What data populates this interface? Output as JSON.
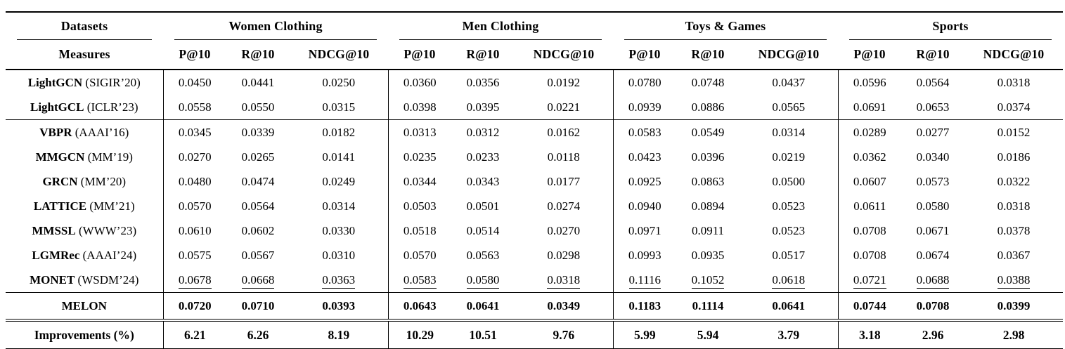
{
  "table": {
    "corner": {
      "row1": "Datasets",
      "row2": "Measures"
    },
    "groups": [
      {
        "label": "Women Clothing"
      },
      {
        "label": "Men Clothing"
      },
      {
        "label": "Toys & Games"
      },
      {
        "label": "Sports"
      }
    ],
    "measures": [
      "P@10",
      "R@10",
      "NDCG@10"
    ],
    "rows": [
      {
        "method": "LightGCN",
        "venue": "(SIGIR’20)",
        "style": "normal",
        "rule_below": "none",
        "values": [
          "0.0450",
          "0.0441",
          "0.0250",
          "0.0360",
          "0.0356",
          "0.0192",
          "0.0780",
          "0.0748",
          "0.0437",
          "0.0596",
          "0.0564",
          "0.0318"
        ]
      },
      {
        "method": "LightGCL",
        "venue": "(ICLR’23)",
        "style": "normal",
        "rule_below": "single",
        "values": [
          "0.0558",
          "0.0550",
          "0.0315",
          "0.0398",
          "0.0395",
          "0.0221",
          "0.0939",
          "0.0886",
          "0.0565",
          "0.0691",
          "0.0653",
          "0.0374"
        ]
      },
      {
        "method": "VBPR",
        "venue": "(AAAI’16)",
        "style": "normal",
        "rule_below": "none",
        "values": [
          "0.0345",
          "0.0339",
          "0.0182",
          "0.0313",
          "0.0312",
          "0.0162",
          "0.0583",
          "0.0549",
          "0.0314",
          "0.0289",
          "0.0277",
          "0.0152"
        ]
      },
      {
        "method": "MMGCN",
        "venue": "(MM’19)",
        "style": "normal",
        "rule_below": "none",
        "values": [
          "0.0270",
          "0.0265",
          "0.0141",
          "0.0235",
          "0.0233",
          "0.0118",
          "0.0423",
          "0.0396",
          "0.0219",
          "0.0362",
          "0.0340",
          "0.0186"
        ]
      },
      {
        "method": "GRCN",
        "venue": "(MM’20)",
        "style": "normal",
        "rule_below": "none",
        "values": [
          "0.0480",
          "0.0474",
          "0.0249",
          "0.0344",
          "0.0343",
          "0.0177",
          "0.0925",
          "0.0863",
          "0.0500",
          "0.0607",
          "0.0573",
          "0.0322"
        ]
      },
      {
        "method": "LATTICE",
        "venue": "(MM’21)",
        "style": "normal",
        "rule_below": "none",
        "values": [
          "0.0570",
          "0.0564",
          "0.0314",
          "0.0503",
          "0.0501",
          "0.0274",
          "0.0940",
          "0.0894",
          "0.0523",
          "0.0611",
          "0.0580",
          "0.0318"
        ]
      },
      {
        "method": "MMSSL",
        "venue": "(WWW’23)",
        "style": "normal",
        "rule_below": "none",
        "values": [
          "0.0610",
          "0.0602",
          "0.0330",
          "0.0518",
          "0.0514",
          "0.0270",
          "0.0971",
          "0.0911",
          "0.0523",
          "0.0708",
          "0.0671",
          "0.0378"
        ]
      },
      {
        "method": "LGMRec",
        "venue": "(AAAI’24)",
        "style": "normal",
        "rule_below": "none",
        "values": [
          "0.0575",
          "0.0567",
          "0.0310",
          "0.0570",
          "0.0563",
          "0.0298",
          "0.0993",
          "0.0935",
          "0.0517",
          "0.0708",
          "0.0674",
          "0.0367"
        ]
      },
      {
        "method": "MONET",
        "venue": "(WSDM’24)",
        "style": "underline",
        "rule_below": "single",
        "values": [
          "0.0678",
          "0.0668",
          "0.0363",
          "0.0583",
          "0.0580",
          "0.0318",
          "0.1116",
          "0.1052",
          "0.0618",
          "0.0721",
          "0.0688",
          "0.0388"
        ]
      },
      {
        "method": "MELON",
        "venue": "",
        "style": "bold",
        "rule_below": "double",
        "values": [
          "0.0720",
          "0.0710",
          "0.0393",
          "0.0643",
          "0.0641",
          "0.0349",
          "0.1183",
          "0.1114",
          "0.0641",
          "0.0744",
          "0.0708",
          "0.0399"
        ]
      },
      {
        "method": "Improvements (%)",
        "venue": "",
        "style": "bold",
        "rule_below": "none",
        "values": [
          "6.21",
          "6.26",
          "8.19",
          "10.29",
          "10.51",
          "9.76",
          "5.99",
          "5.94",
          "3.79",
          "3.18",
          "2.96",
          "2.98"
        ]
      }
    ],
    "layout": {
      "label_col_width": 224,
      "metric_col_widths": [
        90,
        90,
        140
      ]
    },
    "colors": {
      "text": "#000000",
      "rule": "#000000",
      "background": "#ffffff"
    }
  }
}
